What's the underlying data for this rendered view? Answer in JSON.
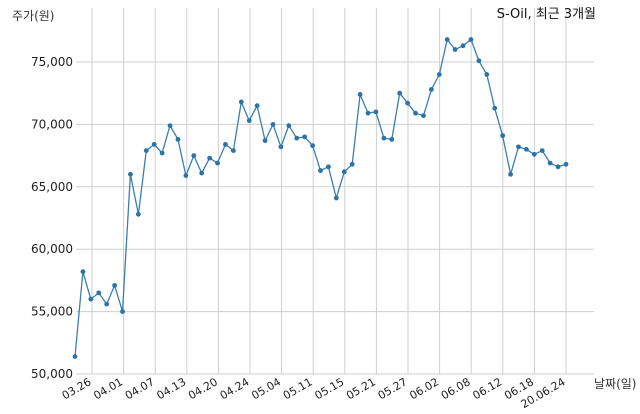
{
  "title": "S-Oil, 최근 3개월",
  "ylabel": "주가(원)",
  "xlabel": "날짜(일)",
  "colors": {
    "line": "#3a7fb0",
    "marker": "#2c73a8",
    "grid": "#cfcfcf"
  },
  "chart_data": {
    "type": "line",
    "title": "S-Oil, 최근 3개월",
    "xlabel": "날짜(일)",
    "ylabel": "주가(원)",
    "ylim": [
      50000,
      77500
    ],
    "yticks": [
      50000,
      55000,
      60000,
      65000,
      70000,
      75000
    ],
    "ytick_labels": [
      "50,000",
      "55,000",
      "60,000",
      "65,000",
      "70,000",
      "75,000"
    ],
    "xtick_labels": [
      "03.26",
      "04.01",
      "04.07",
      "04.13",
      "04.20",
      "04.24",
      "05.04",
      "05.11",
      "05.15",
      "05.21",
      "05.27",
      "06.02",
      "06.08",
      "06.12",
      "06.18",
      "20.06.24"
    ],
    "grid": true,
    "series": [
      {
        "values": [
          51400,
          58200,
          56000,
          56500,
          55600,
          57100,
          55000,
          66000,
          62800,
          67900,
          68400,
          67700,
          69900,
          68800,
          65900,
          67500,
          66100,
          67300,
          66900,
          68400,
          67900,
          71800,
          70300,
          71500,
          68700,
          70000,
          68200,
          69900,
          68900,
          69000,
          68300,
          66300,
          66600,
          64100,
          66200,
          66800,
          72400,
          70900,
          71000,
          68900,
          68800,
          72500,
          71700,
          70900,
          70700,
          72800,
          74000,
          76800,
          76000,
          76300,
          76800,
          75100,
          74000,
          71300,
          69100,
          66000,
          68200,
          68000,
          67600,
          67900,
          66900,
          66600,
          66800
        ]
      }
    ]
  }
}
